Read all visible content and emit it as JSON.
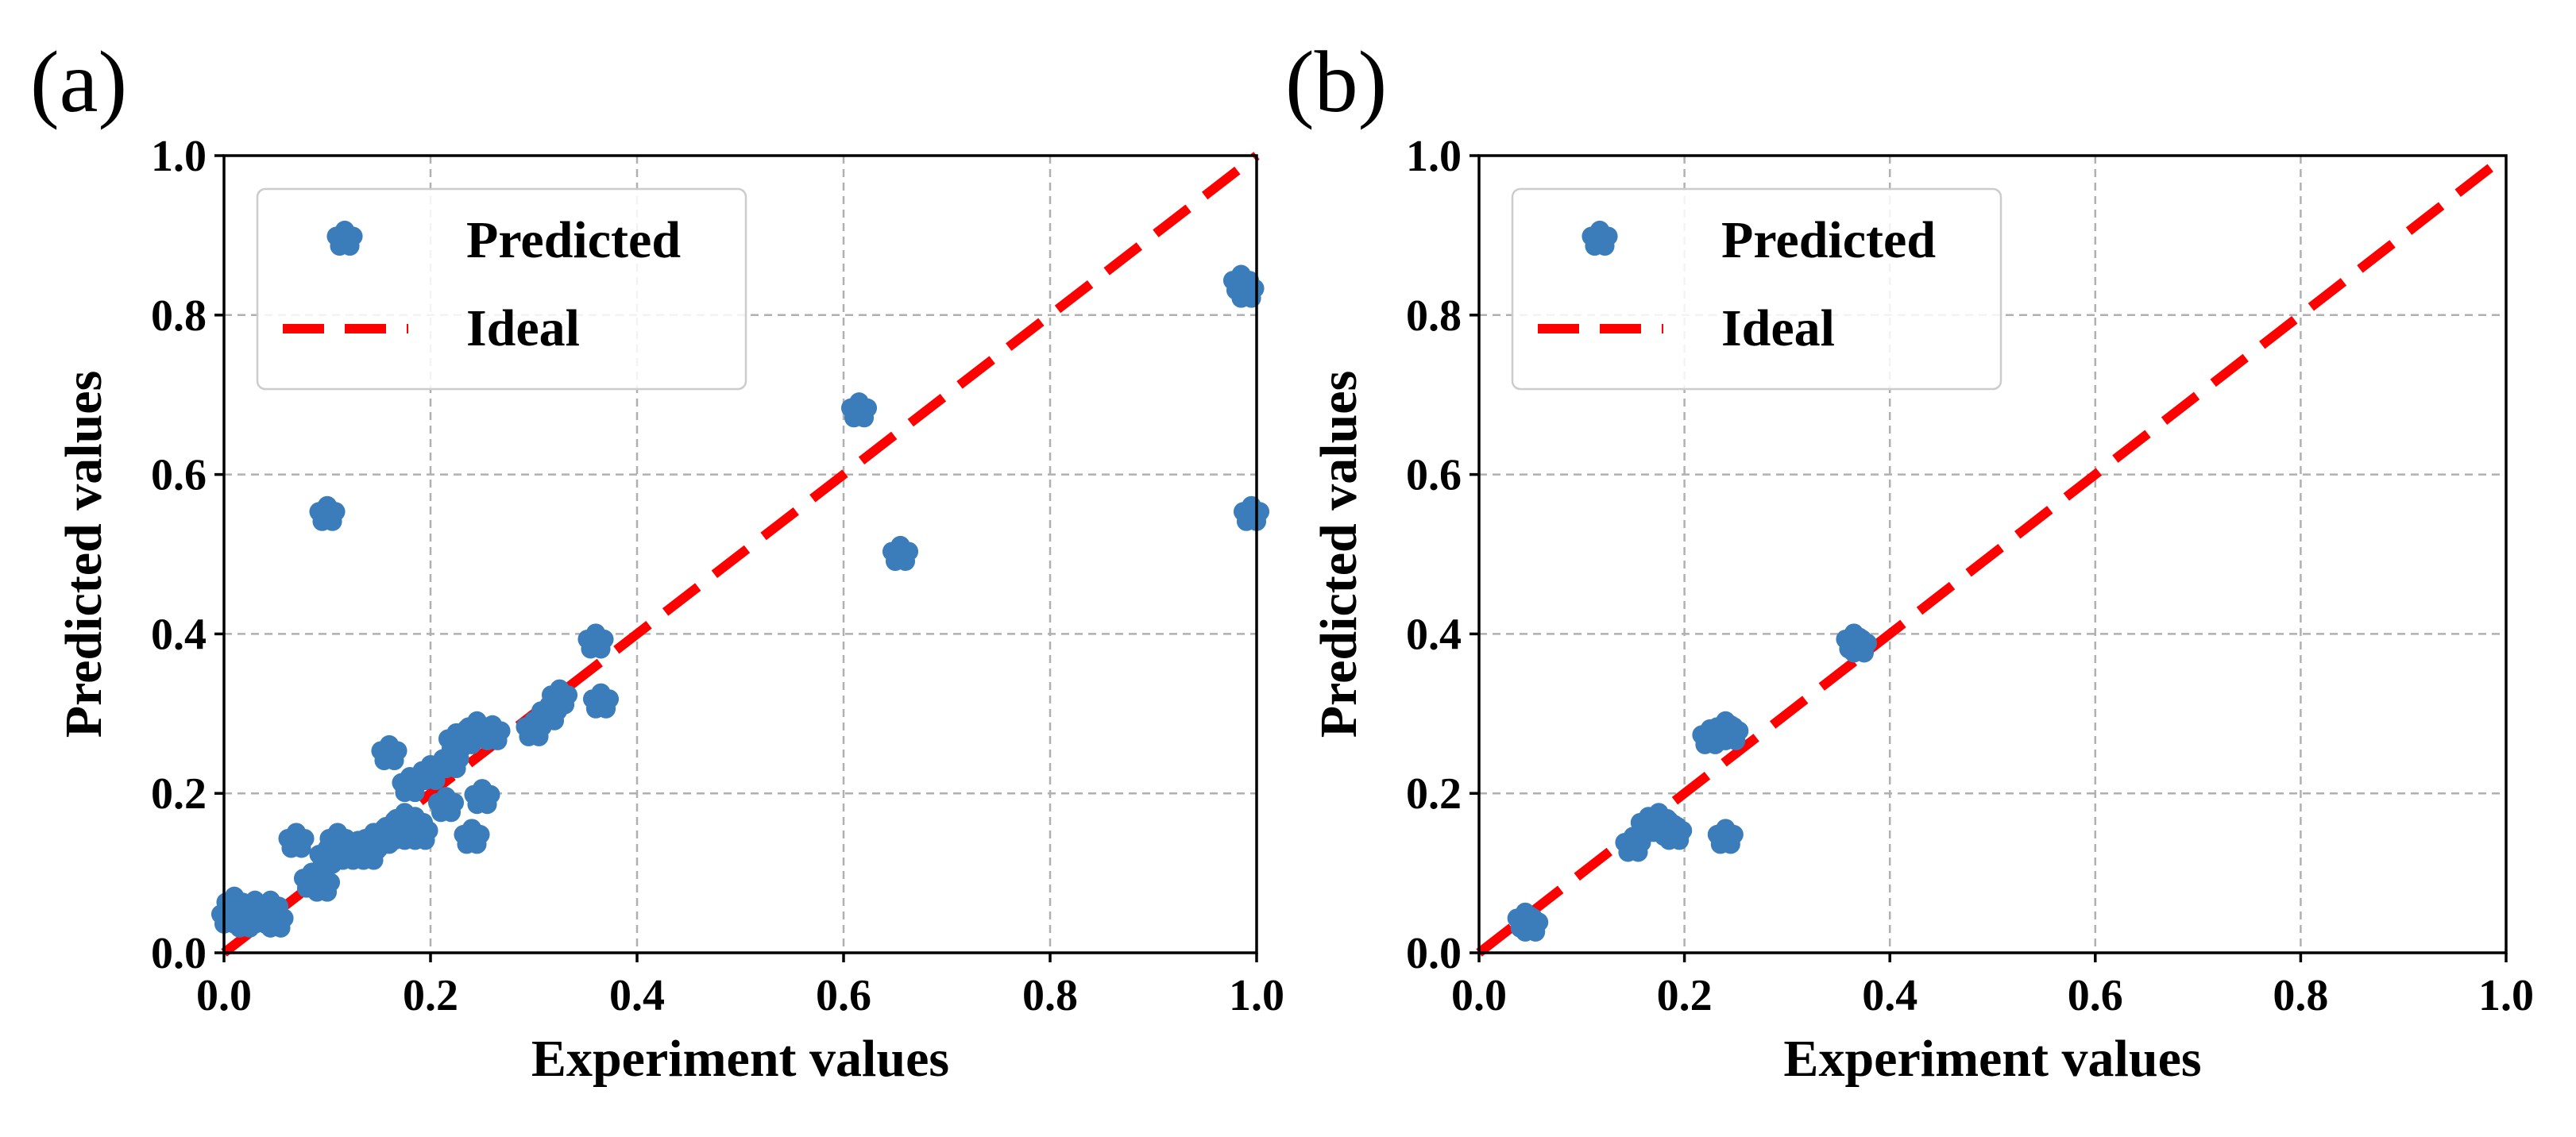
{
  "colors": {
    "predicted": "#3b7dbb",
    "ideal": "#ff0000"
  },
  "chart_data": [
    {
      "type": "scatter",
      "panel_label": "(a)",
      "xlabel": "Experiment values",
      "ylabel": "Predicted values",
      "xlim": [
        0,
        1
      ],
      "ylim": [
        0,
        1
      ],
      "xticks": [
        "0.0",
        "0.2",
        "0.4",
        "0.6",
        "0.8",
        "1.0"
      ],
      "yticks": [
        "0.0",
        "0.2",
        "0.4",
        "0.6",
        "0.8",
        "1.0"
      ],
      "grid": true,
      "legend": {
        "placement": "top-left",
        "entries": [
          "Predicted",
          "Ideal"
        ]
      },
      "series": [
        {
          "name": "Predicted",
          "marker": "flower",
          "points": [
            [
              0.005,
              0.045
            ],
            [
              0.01,
              0.06
            ],
            [
              0.015,
              0.05
            ],
            [
              0.02,
              0.04
            ],
            [
              0.025,
              0.05
            ],
            [
              0.03,
              0.055
            ],
            [
              0.035,
              0.045
            ],
            [
              0.04,
              0.05
            ],
            [
              0.045,
              0.055
            ],
            [
              0.05,
              0.04
            ],
            [
              0.07,
              0.14
            ],
            [
              0.085,
              0.09
            ],
            [
              0.095,
              0.085
            ],
            [
              0.1,
              0.12
            ],
            [
              0.11,
              0.14
            ],
            [
              0.12,
              0.125
            ],
            [
              0.13,
              0.13
            ],
            [
              0.14,
              0.125
            ],
            [
              0.145,
              0.14
            ],
            [
              0.155,
              0.145
            ],
            [
              0.16,
              0.25
            ],
            [
              0.165,
              0.155
            ],
            [
              0.17,
              0.15
            ],
            [
              0.175,
              0.165
            ],
            [
              0.18,
              0.21
            ],
            [
              0.185,
              0.16
            ],
            [
              0.19,
              0.15
            ],
            [
              0.2,
              0.225
            ],
            [
              0.215,
              0.185
            ],
            [
              0.22,
              0.24
            ],
            [
              0.225,
              0.265
            ],
            [
              0.235,
              0.27
            ],
            [
              0.24,
              0.145
            ],
            [
              0.245,
              0.28
            ],
            [
              0.25,
              0.195
            ],
            [
              0.26,
              0.275
            ],
            [
              0.3,
              0.28
            ],
            [
              0.315,
              0.3
            ],
            [
              0.325,
              0.32
            ],
            [
              0.36,
              0.39
            ],
            [
              0.365,
              0.315
            ],
            [
              0.1,
              0.55
            ],
            [
              0.615,
              0.68
            ],
            [
              0.655,
              0.5
            ],
            [
              0.985,
              0.84
            ],
            [
              0.99,
              0.83
            ],
            [
              0.995,
              0.55
            ]
          ]
        },
        {
          "name": "Ideal",
          "line": [
            [
              0,
              0
            ],
            [
              1,
              1
            ]
          ]
        }
      ]
    },
    {
      "type": "scatter",
      "panel_label": "(b)",
      "xlabel": "Experiment values",
      "ylabel": "Predicted values",
      "xlim": [
        0,
        1
      ],
      "ylim": [
        0,
        1
      ],
      "xticks": [
        "0.0",
        "0.2",
        "0.4",
        "0.6",
        "0.8",
        "1.0"
      ],
      "yticks": [
        "0.0",
        "0.2",
        "0.4",
        "0.6",
        "0.8",
        "1.0"
      ],
      "grid": true,
      "legend": {
        "placement": "top-left",
        "entries": [
          "Predicted",
          "Ideal"
        ]
      },
      "series": [
        {
          "name": "Predicted",
          "marker": "flower",
          "points": [
            [
              0.045,
              0.04
            ],
            [
              0.05,
              0.035
            ],
            [
              0.15,
              0.135
            ],
            [
              0.165,
              0.16
            ],
            [
              0.175,
              0.165
            ],
            [
              0.185,
              0.155
            ],
            [
              0.19,
              0.15
            ],
            [
              0.225,
              0.27
            ],
            [
              0.24,
              0.28
            ],
            [
              0.245,
              0.275
            ],
            [
              0.24,
              0.145
            ],
            [
              0.365,
              0.39
            ],
            [
              0.37,
              0.385
            ]
          ]
        },
        {
          "name": "Ideal",
          "line": [
            [
              0,
              0
            ],
            [
              1,
              1
            ]
          ]
        }
      ]
    }
  ]
}
